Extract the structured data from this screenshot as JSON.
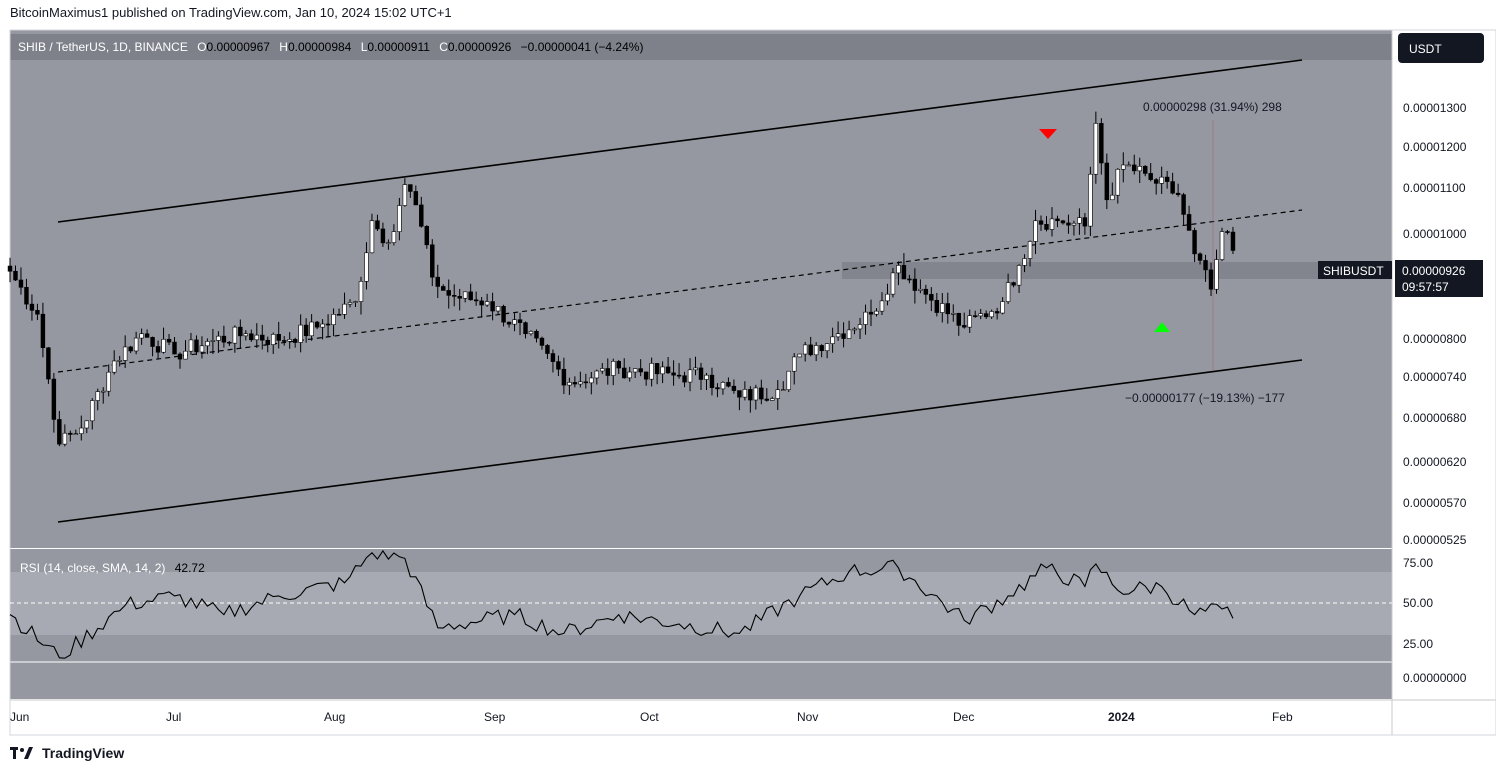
{
  "header": {
    "publisher_line": "BitcoinMaximus1 published on TradingView.com, Jan 10, 2024 15:02 UTC+1"
  },
  "footer": {
    "brand": "TradingView"
  },
  "legend": {
    "symbol": "SHIB / TetherUS, 1D, BINANCE",
    "o_label": "O",
    "o_value": "0.00000967",
    "h_label": "H",
    "h_value": "0.00000984",
    "l_label": "L",
    "l_value": "0.00000911",
    "c_label": "C",
    "c_value": "0.00000926",
    "change": "−0.00000041 (−4.24%)"
  },
  "currency_button": "USDT",
  "price_tag": {
    "symbol": "SHIBUSDT",
    "price": "0.00000926",
    "countdown": "09:57:57"
  },
  "annotations": {
    "upper_measure": "0.00000298 (31.94%) 298",
    "lower_measure": "−0.00000177 (−19.13%) −177"
  },
  "colors": {
    "background": "#9598a1",
    "candle_up": "#ffffff",
    "candle_down": "#000000",
    "line": "#000000",
    "marker_down": "#ff0000",
    "marker_up": "#00ff00",
    "rsi_line": "#000000"
  },
  "chart_data": [
    {
      "type": "candlestick",
      "title": "",
      "y_ticks": [
        "0.00001300",
        "0.00001200",
        "0.00001100",
        "0.00001000",
        "0.00000800",
        "0.00000740",
        "0.00000680",
        "0.00000620",
        "0.00000570",
        "0.00000525"
      ],
      "x_ticks": [
        "Jun",
        "Jul",
        "Aug",
        "Sep",
        "Oct",
        "Nov",
        "Dec",
        "2024",
        "Feb"
      ],
      "log_scale": true,
      "ylim": [
        5.25e-06,
        1.41e-05
      ],
      "x_range": [
        "2023-06-01",
        "2024-02-08"
      ],
      "last_close": 9.26e-06,
      "closes": [
        {
          "date": "2023-06-01",
          "close": 8.9e-06
        },
        {
          "date": "2023-06-06",
          "close": 8.2e-06
        },
        {
          "date": "2023-06-10",
          "close": 6.4e-06
        },
        {
          "date": "2023-06-14",
          "close": 6.6e-06
        },
        {
          "date": "2023-06-20",
          "close": 7.5e-06
        },
        {
          "date": "2023-06-25",
          "close": 7.9e-06
        },
        {
          "date": "2023-07-01",
          "close": 7.6e-06
        },
        {
          "date": "2023-07-08",
          "close": 7.8e-06
        },
        {
          "date": "2023-07-14",
          "close": 7.9e-06
        },
        {
          "date": "2023-07-20",
          "close": 7.8e-06
        },
        {
          "date": "2023-07-27",
          "close": 8e-06
        },
        {
          "date": "2023-08-03",
          "close": 8.4e-06
        },
        {
          "date": "2023-08-06",
          "close": 9.8e-06
        },
        {
          "date": "2023-08-09",
          "close": 9.4e-06
        },
        {
          "date": "2023-08-12",
          "close": 1.05e-05
        },
        {
          "date": "2023-08-14",
          "close": 1.01e-05
        },
        {
          "date": "2023-08-17",
          "close": 8.8e-06
        },
        {
          "date": "2023-08-20",
          "close": 8.5e-06
        },
        {
          "date": "2023-08-27",
          "close": 8.4e-06
        },
        {
          "date": "2023-09-03",
          "close": 7.9e-06
        },
        {
          "date": "2023-09-11",
          "close": 7.2e-06
        },
        {
          "date": "2023-09-20",
          "close": 7.4e-06
        },
        {
          "date": "2023-09-30",
          "close": 7.3e-06
        },
        {
          "date": "2023-10-06",
          "close": 7.3e-06
        },
        {
          "date": "2023-10-12",
          "close": 7e-06
        },
        {
          "date": "2023-10-19",
          "close": 7.1e-06
        },
        {
          "date": "2023-10-23",
          "close": 7.6e-06
        },
        {
          "date": "2023-10-30",
          "close": 7.9e-06
        },
        {
          "date": "2023-11-05",
          "close": 8.2e-06
        },
        {
          "date": "2023-11-10",
          "close": 9e-06
        },
        {
          "date": "2023-11-14",
          "close": 8.6e-06
        },
        {
          "date": "2023-11-22",
          "close": 8e-06
        },
        {
          "date": "2023-11-29",
          "close": 8.4e-06
        },
        {
          "date": "2023-12-02",
          "close": 9e-06
        },
        {
          "date": "2023-12-05",
          "close": 9.8e-06
        },
        {
          "date": "2023-12-09",
          "close": 9.8e-06
        },
        {
          "date": "2023-12-14",
          "close": 9.7e-06
        },
        {
          "date": "2023-12-16",
          "close": 1.18e-05
        },
        {
          "date": "2023-12-18",
          "close": 1.02e-05
        },
        {
          "date": "2023-12-21",
          "close": 1.09e-05
        },
        {
          "date": "2023-12-26",
          "close": 1.06e-05
        },
        {
          "date": "2023-12-31",
          "close": 1.03e-05
        },
        {
          "date": "2024-01-03",
          "close": 9.2e-06
        },
        {
          "date": "2024-01-06",
          "close": 8.6e-06
        },
        {
          "date": "2024-01-08",
          "close": 9.6e-06
        },
        {
          "date": "2024-01-10",
          "close": 9.26e-06
        }
      ]
    },
    {
      "type": "line",
      "title": "RSI (14, close, SMA, 14, 2)",
      "current_value": "42.72",
      "y_ticks": [
        "75.00",
        "50.00",
        "25.00"
      ],
      "bottom_tick": "0.00000000",
      "band": [
        30,
        70
      ],
      "ylim": [
        0,
        80
      ],
      "values": [
        {
          "date": "2023-06-01",
          "value": 45
        },
        {
          "date": "2023-06-10",
          "value": 22
        },
        {
          "date": "2023-06-22",
          "value": 50
        },
        {
          "date": "2023-07-01",
          "value": 55
        },
        {
          "date": "2023-07-10",
          "value": 45
        },
        {
          "date": "2023-07-20",
          "value": 55
        },
        {
          "date": "2023-08-01",
          "value": 62
        },
        {
          "date": "2023-08-06",
          "value": 78
        },
        {
          "date": "2023-08-12",
          "value": 75
        },
        {
          "date": "2023-08-18",
          "value": 38
        },
        {
          "date": "2023-09-01",
          "value": 45
        },
        {
          "date": "2023-09-10",
          "value": 35
        },
        {
          "date": "2023-09-20",
          "value": 45
        },
        {
          "date": "2023-10-01",
          "value": 40
        },
        {
          "date": "2023-10-12",
          "value": 35
        },
        {
          "date": "2023-10-23",
          "value": 55
        },
        {
          "date": "2023-11-01",
          "value": 68
        },
        {
          "date": "2023-11-10",
          "value": 70
        },
        {
          "date": "2023-11-22",
          "value": 42
        },
        {
          "date": "2023-11-30",
          "value": 55
        },
        {
          "date": "2023-12-07",
          "value": 70
        },
        {
          "date": "2023-12-14",
          "value": 60
        },
        {
          "date": "2023-12-16",
          "value": 72
        },
        {
          "date": "2023-12-20",
          "value": 58
        },
        {
          "date": "2023-12-28",
          "value": 60
        },
        {
          "date": "2024-01-03",
          "value": 45
        },
        {
          "date": "2024-01-08",
          "value": 48
        },
        {
          "date": "2024-01-10",
          "value": 43
        }
      ]
    }
  ]
}
